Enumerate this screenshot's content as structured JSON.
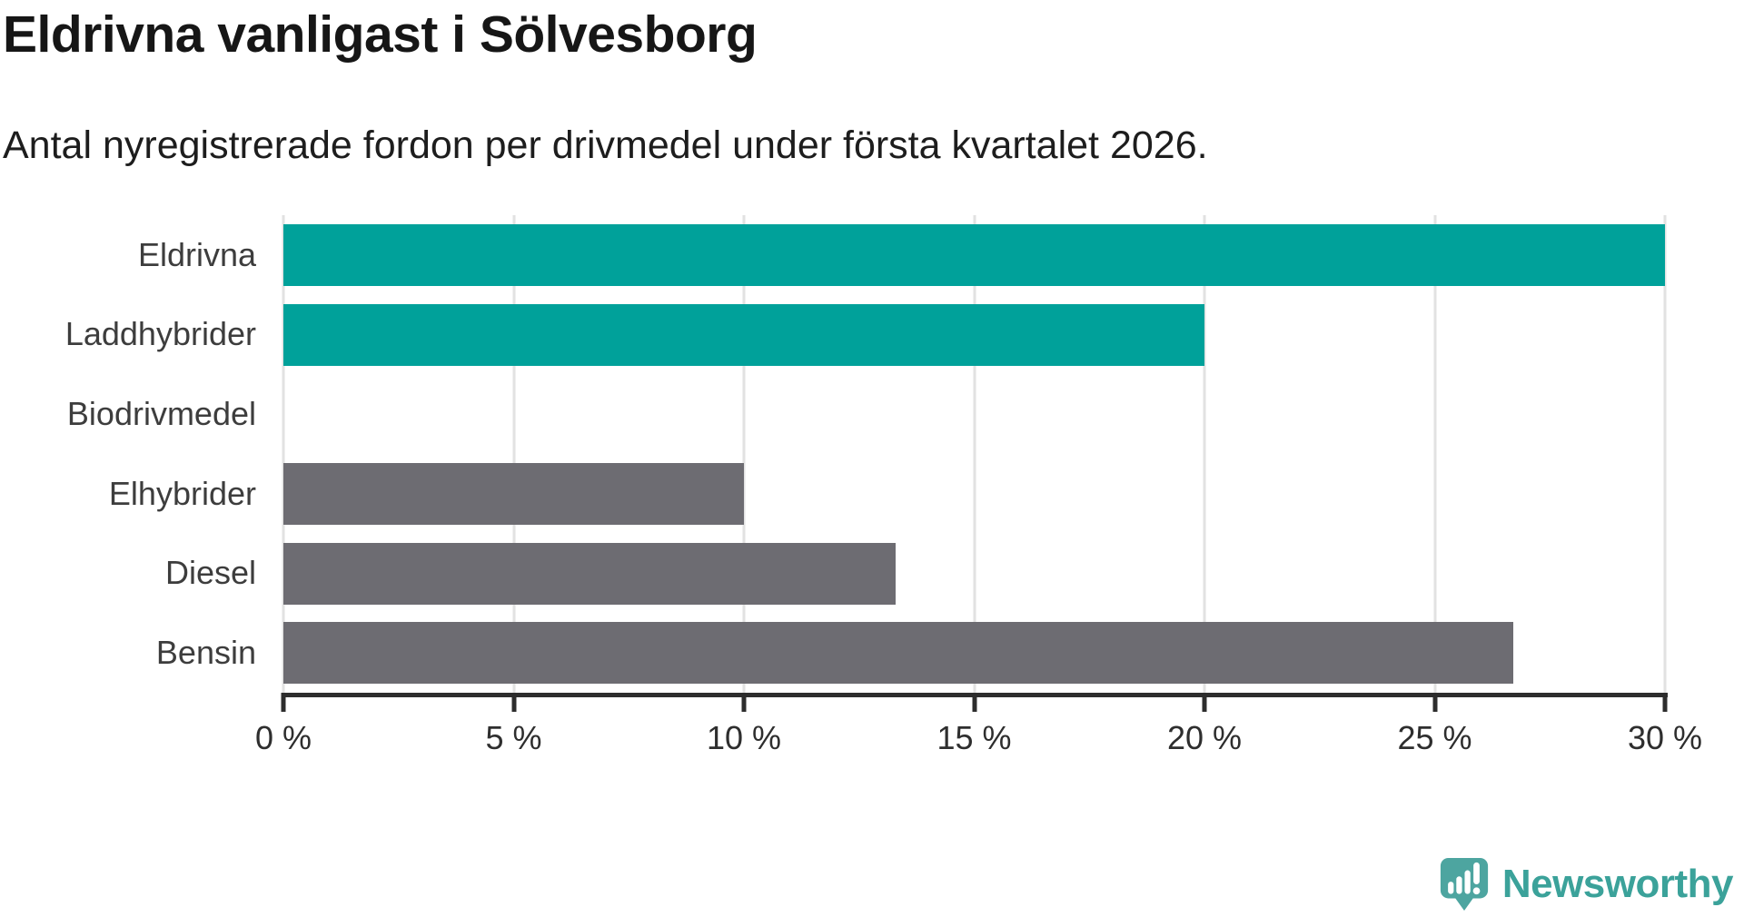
{
  "header": {
    "title": "Eldrivna vanligast i Sölvesborg",
    "subtitle": "Antal nyregistrerade fordon per drivmedel under första kvartalet 2026."
  },
  "chart_data": {
    "type": "bar",
    "orientation": "horizontal",
    "title": "Eldrivna vanligast i Sölvesborg",
    "subtitle": "Antal nyregistrerade fordon per drivmedel under första kvartalet 2026.",
    "categories": [
      "Eldrivna",
      "Laddhybrider",
      "Biodrivmedel",
      "Elhybrider",
      "Diesel",
      "Bensin"
    ],
    "values": [
      30,
      20,
      0,
      10,
      13.3,
      26.7
    ],
    "unit": "%",
    "xlabel": "",
    "ylabel": "",
    "xlim": [
      0,
      30
    ],
    "ticks": [
      0,
      5,
      10,
      15,
      20,
      25,
      30
    ],
    "tick_labels": [
      "0 %",
      "5 %",
      "10 %",
      "15 %",
      "20 %",
      "25 %",
      "30 %"
    ],
    "grid": true,
    "legend": false,
    "bar_colors": [
      "#00a19a",
      "#00a19a",
      "#00a19a",
      "#6d6c72",
      "#6d6c72",
      "#6d6c72"
    ]
  },
  "colors": {
    "highlight_bar": "#00a19a",
    "default_bar": "#6d6c72",
    "axis": "#2d2d2d",
    "gridline": "#e2e2e2",
    "row_label": "#3d3d3d",
    "tick_label": "#2e2e2e",
    "title_text": "#161616",
    "logo_teal": "#3ba29a",
    "logo_icon_teal": "#4da5a0"
  },
  "footer": {
    "brand": "Newsworthy",
    "logo_icon": "newsworthy-speech-bubble-chart-icon"
  }
}
